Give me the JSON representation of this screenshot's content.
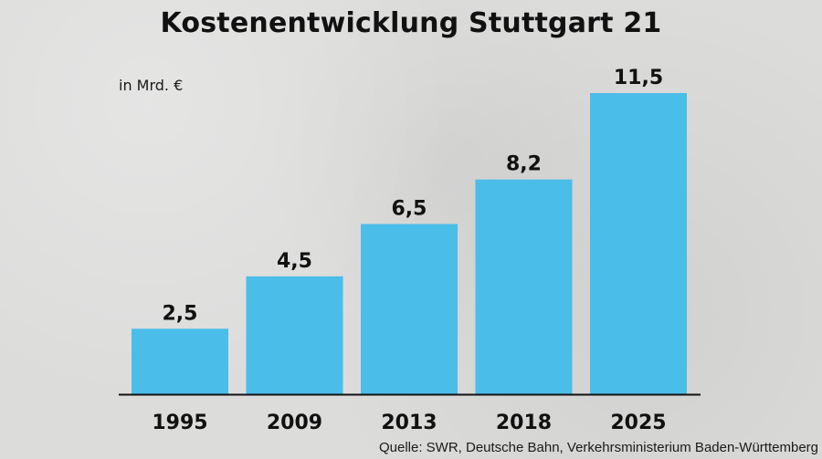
{
  "chart_data": {
    "type": "bar",
    "title": "Kostenentwicklung Stuttgart 21",
    "unit_label": "in Mrd. €",
    "categories": [
      "1995",
      "2009",
      "2013",
      "2018",
      "2025"
    ],
    "values": [
      2.5,
      4.5,
      6.5,
      8.2,
      11.5
    ],
    "value_labels": [
      "2,5",
      "4,5",
      "6,5",
      "8,2",
      "11,5"
    ],
    "xlabel": "",
    "ylabel": "",
    "ylim": [
      0,
      11.5
    ],
    "grid": false,
    "legend": "none",
    "source": "Quelle: SWR, Deutsche Bahn, Verkehrsministerium Baden-Württemberg"
  },
  "colors": {
    "bar": "#4bbde9",
    "axis": "#111111",
    "text": "#111111",
    "background": "#dcdcdb"
  }
}
